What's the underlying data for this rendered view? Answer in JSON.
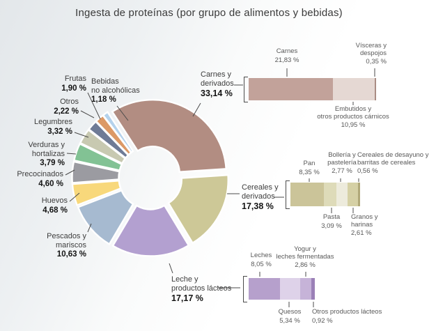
{
  "title": "Ingesta de proteínas (por grupo de alimentos y bebidas)",
  "chart_data": {
    "type": "donut-with-stacked-bar-breakdowns",
    "unit": "%",
    "donut": {
      "slices": [
        {
          "label": "Carnes y derivados",
          "label_lines": [
            "Carnes y",
            "derivados"
          ],
          "value": 33.14,
          "display": "33,14 %",
          "color": "#b28d82"
        },
        {
          "label": "Cereales y derivados",
          "label_lines": [
            "Cereales y",
            "derivados"
          ],
          "value": 17.38,
          "display": "17,38 %",
          "color": "#cdc897"
        },
        {
          "label": "Leche y productos lácteos",
          "label_lines": [
            "Leche y",
            "productos lácteos"
          ],
          "value": 17.17,
          "display": "17,17 %",
          "color": "#b3a0d0"
        },
        {
          "label": "Pescados y mariscos",
          "label_lines": [
            "Pescados y",
            "mariscos"
          ],
          "value": 10.63,
          "display": "10,63 %",
          "color": "#a6bad0"
        },
        {
          "label": "Huevos",
          "label_lines": [
            "Huevos"
          ],
          "value": 4.68,
          "display": "4,68 %",
          "color": "#f8d87b"
        },
        {
          "label": "Precocinados",
          "label_lines": [
            "Precocinados"
          ],
          "value": 4.6,
          "display": "4,60 %",
          "color": "#9b9ba1"
        },
        {
          "label": "Verduras y hortalizas",
          "label_lines": [
            "Verduras y",
            "hortalizas"
          ],
          "value": 3.79,
          "display": "3,79 %",
          "color": "#82c294"
        },
        {
          "label": "Legumbres",
          "label_lines": [
            "Legumbres"
          ],
          "value": 3.32,
          "display": "3,32 %",
          "color": "#c8c9b1"
        },
        {
          "label": "Otros",
          "label_lines": [
            "Otros"
          ],
          "value": 2.22,
          "display": "2,22 %",
          "color": "#6f7b96"
        },
        {
          "label": "Frutas",
          "label_lines": [
            "Frutas"
          ],
          "value": 1.9,
          "display": "1,90 %",
          "color": "#dc9966"
        },
        {
          "label": "Bebidas no alcohólicas",
          "label_lines": [
            "Bebidas",
            "no alcohólicas"
          ],
          "value": 1.18,
          "display": "1,18 %",
          "color": "#b4d2ec"
        }
      ]
    },
    "bars": [
      {
        "group": "Carnes y derivados",
        "group_lines": [
          "Carnes y",
          "derivados"
        ],
        "group_display": "33,14 %",
        "total": 33.14,
        "segments": [
          {
            "label": "Carnes",
            "label_lines": [
              "Carnes"
            ],
            "value": 21.83,
            "display": "21,83 %",
            "color": "#c2a29a"
          },
          {
            "label": "Embutidos y otros productos cárnicos",
            "label_lines": [
              "Embutidos y",
              "otros productos cárnicos"
            ],
            "value": 10.95,
            "display": "10,95 %",
            "color": "#e5d8d3"
          },
          {
            "label": "Vísceras y despojos",
            "label_lines": [
              "Vísceras y",
              "despojos"
            ],
            "value": 0.35,
            "display": "0,35 %",
            "color": "#a98c83"
          }
        ]
      },
      {
        "group": "Cereales y derivados",
        "group_lines": [
          "Cereales y",
          "derivados"
        ],
        "group_display": "17,38 %",
        "total": 17.38,
        "segments": [
          {
            "label": "Pan",
            "label_lines": [
              "Pan"
            ],
            "value": 8.35,
            "display": "8,35 %",
            "color": "#cbc499"
          },
          {
            "label": "Pasta",
            "label_lines": [
              "Pasta"
            ],
            "value": 3.09,
            "display": "3,09 %",
            "color": "#dedbb9"
          },
          {
            "label": "Bollería y pastelería",
            "label_lines": [
              "Bollería y",
              "pastelería"
            ],
            "value": 2.77,
            "display": "2,77 %",
            "color": "#edebdc"
          },
          {
            "label": "Granos y harinas",
            "label_lines": [
              "Granos y",
              "harinas"
            ],
            "value": 2.61,
            "display": "2,61 %",
            "color": "#d5d0a5"
          },
          {
            "label": "Cereales de desayuno y barritas de cereales",
            "label_lines": [
              "Cereales de desayuno y",
              "barritas de cereales"
            ],
            "value": 0.56,
            "display": "0,56 %",
            "color": "#b0a878"
          }
        ]
      },
      {
        "group": "Leche y productos lácteos",
        "group_lines": [
          "Leche y",
          "productos lácteos"
        ],
        "group_display": "17,17 %",
        "total": 17.17,
        "segments": [
          {
            "label": "Leches",
            "label_lines": [
              "Leches"
            ],
            "value": 8.05,
            "display": "8,05 %",
            "color": "#b6a0cc"
          },
          {
            "label": "Quesos",
            "label_lines": [
              "Quesos"
            ],
            "value": 5.34,
            "display": "5,34 %",
            "color": "#ded2e9"
          },
          {
            "label": "Yogur y leches fermentadas",
            "label_lines": [
              "Yogur y",
              "leches fermentadas"
            ],
            "value": 2.86,
            "display": "2,86 %",
            "color": "#c6b3d8"
          },
          {
            "label": "Otros productos lácteos",
            "label_lines": [
              "Otros productos lácteos"
            ],
            "value": 0.92,
            "display": "0,92 %",
            "color": "#9b80b7"
          }
        ]
      }
    ]
  }
}
